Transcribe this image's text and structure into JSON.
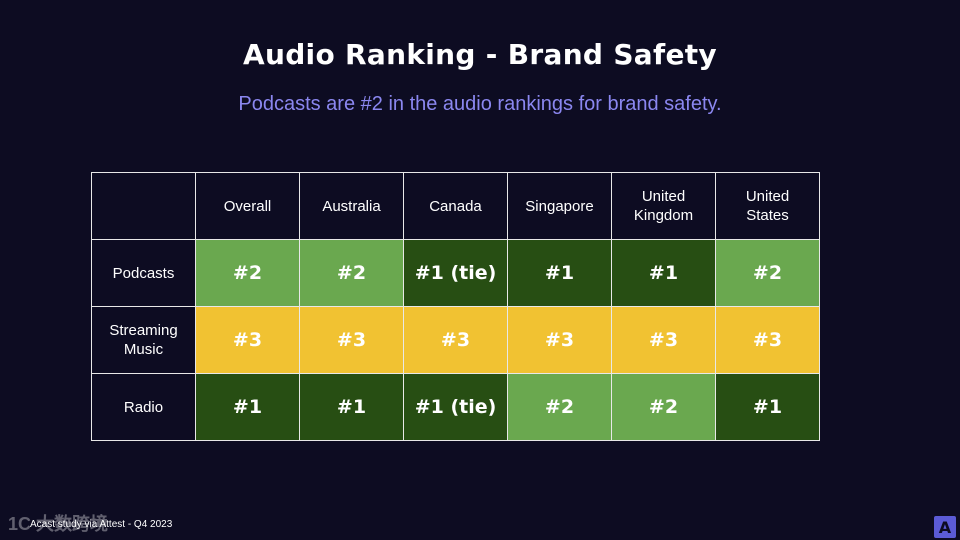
{
  "title": "Audio Ranking - Brand Safety",
  "subtitle": "Podcasts are #2 in the audio rankings for brand safety.",
  "table": {
    "columns": [
      "Overall",
      "Australia",
      "Canada",
      "Singapore",
      "United\nKingdom",
      "United\nStates"
    ],
    "rows": [
      {
        "label": "Podcasts",
        "cells": [
          {
            "value": "#2",
            "color": "#6aa84f"
          },
          {
            "value": "#2",
            "color": "#6aa84f"
          },
          {
            "value": "#1 (tie)",
            "color": "#274e13"
          },
          {
            "value": "#1",
            "color": "#274e13"
          },
          {
            "value": "#1",
            "color": "#274e13"
          },
          {
            "value": "#2",
            "color": "#6aa84f"
          }
        ]
      },
      {
        "label": "Streaming\nMusic",
        "cells": [
          {
            "value": "#3",
            "color": "#f1c232"
          },
          {
            "value": "#3",
            "color": "#f1c232"
          },
          {
            "value": "#3",
            "color": "#f1c232"
          },
          {
            "value": "#3",
            "color": "#f1c232"
          },
          {
            "value": "#3",
            "color": "#f1c232"
          },
          {
            "value": "#3",
            "color": "#f1c232"
          }
        ]
      },
      {
        "label": "Radio",
        "cells": [
          {
            "value": "#1",
            "color": "#274e13"
          },
          {
            "value": "#1",
            "color": "#274e13"
          },
          {
            "value": "#1 (tie)",
            "color": "#274e13"
          },
          {
            "value": "#2",
            "color": "#6aa84f"
          },
          {
            "value": "#2",
            "color": "#6aa84f"
          },
          {
            "value": "#1",
            "color": "#274e13"
          }
        ]
      }
    ]
  },
  "footer": "Acast study via Attest - Q4 2023",
  "watermark": "1C 大数跨境",
  "logo_letter": "A",
  "colors": {
    "background": "#0d0c22",
    "subtitle": "#8b87f0",
    "rank_light_green": "#6aa84f",
    "rank_dark_green": "#274e13",
    "rank_yellow": "#f1c232",
    "logo": "#5b5bd6"
  }
}
